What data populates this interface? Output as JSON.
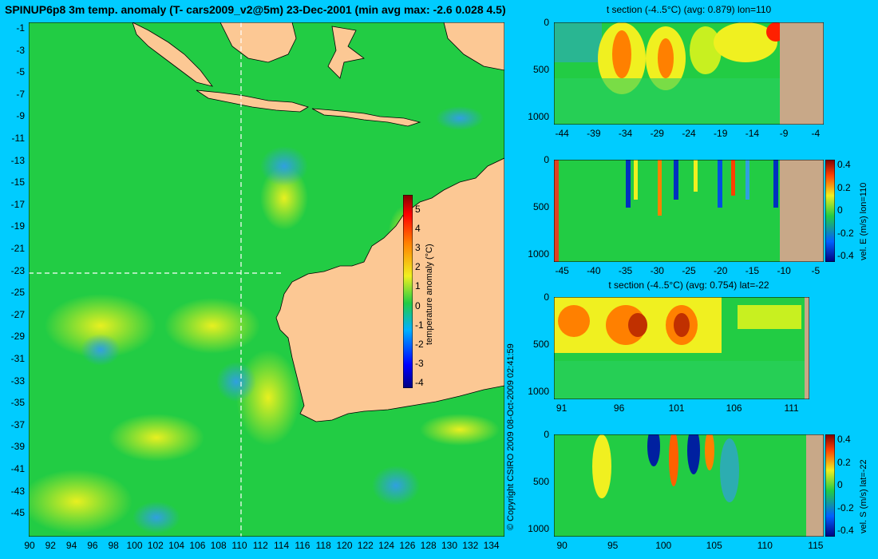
{
  "header": {
    "title": "SPINUP6p8 3m temp. anomaly (T- cars2009_v2@5m) 23-Dec-2001 (min avg max: -2.6 0.028 4.5)"
  },
  "copyright": "© Copyright CSIRO 2009   08-Oct-2009 02:41:59",
  "map": {
    "lon_ticks": [
      "90",
      "92",
      "94",
      "96",
      "98",
      "100",
      "102",
      "104",
      "106",
      "108",
      "110",
      "112",
      "114",
      "116",
      "118",
      "120",
      "122",
      "124",
      "126",
      "128",
      "130",
      "132",
      "134"
    ],
    "lat_ticks": [
      "-1",
      "-3",
      "-5",
      "-7",
      "-9",
      "-11",
      "-13",
      "-15",
      "-17",
      "-19",
      "-21",
      "-23",
      "-25",
      "-27",
      "-29",
      "-31",
      "-33",
      "-35",
      "-37",
      "-39",
      "-41",
      "-43",
      "-45"
    ],
    "section_lon": 110,
    "section_lat": -22,
    "colorbar": {
      "label": "temperature anomaly (°C)",
      "ticks": [
        "5",
        "4",
        "3",
        "2",
        "1",
        "0",
        "-1",
        "-2",
        "-3",
        "-4"
      ]
    },
    "colors": {
      "land": "#fcc894",
      "ocean": "#22cc44"
    }
  },
  "panels": [
    {
      "id": "t-section-lon",
      "title": "t section (-4..5°C) (avg: 0.879) lon=110",
      "y_ticks": [
        "0",
        "500",
        "1000"
      ],
      "x_ticks": [
        "-44",
        "-39",
        "-34",
        "-29",
        "-24",
        "-19",
        "-14",
        "-9",
        "-4"
      ],
      "colorbar_label": "",
      "colorbar_ticks": []
    },
    {
      "id": "vel-e-section",
      "title": "",
      "y_ticks": [
        "0",
        "500",
        "1000"
      ],
      "x_ticks": [
        "-45",
        "-40",
        "-35",
        "-30",
        "-25",
        "-20",
        "-15",
        "-10",
        "-5"
      ],
      "colorbar_label": "vel. E (m/s) lon=110",
      "colorbar_ticks": [
        "0.4",
        "0.2",
        "0",
        "-0.2",
        "-0.4"
      ]
    },
    {
      "id": "t-section-lat",
      "title": "t section (-4..5°C) (avg: 0.754) lat=-22",
      "y_ticks": [
        "0",
        "500",
        "1000"
      ],
      "x_ticks": [
        "91",
        "96",
        "101",
        "106",
        "111"
      ],
      "colorbar_label": "",
      "colorbar_ticks": []
    },
    {
      "id": "vel-s-section",
      "title": "",
      "y_ticks": [
        "0",
        "500",
        "1000"
      ],
      "x_ticks": [
        "90",
        "95",
        "100",
        "105",
        "110",
        "115"
      ],
      "colorbar_label": "vel. S (m/s) lat=-22",
      "colorbar_ticks": [
        "0.4",
        "0.2",
        "0",
        "-0.2",
        "-0.4"
      ]
    }
  ]
}
